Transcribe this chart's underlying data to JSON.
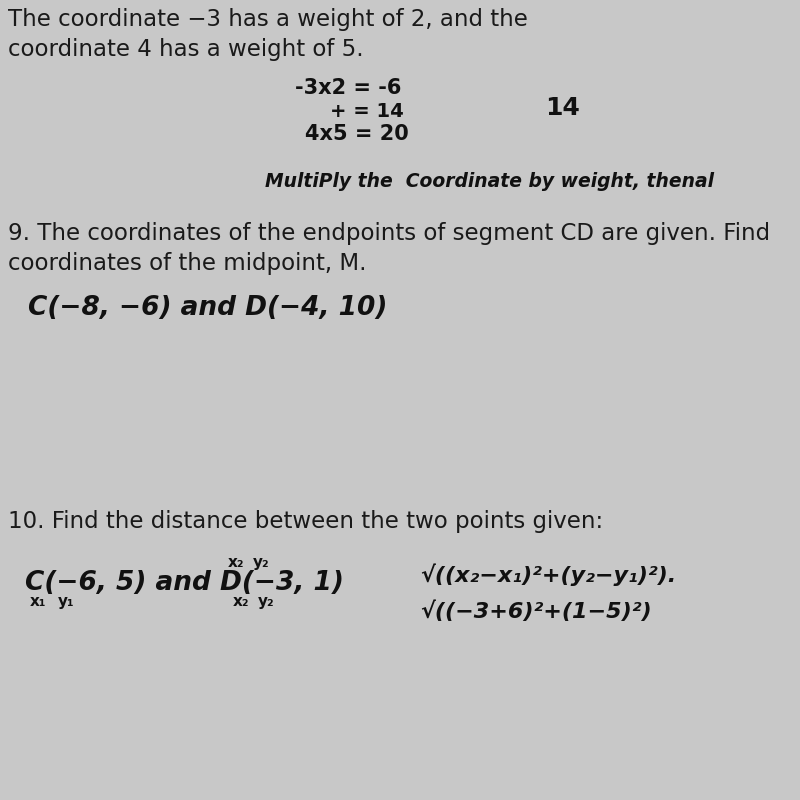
{
  "bg_color": "#c8c8c8",
  "paper_color": "#d8d8d8",
  "text_color": "#1a1a1a",
  "hw_color": "#111111",
  "top_line1": "The coordinate −3 has a weight of 2, and the",
  "top_line2": "coordinate 4 has a weight of 5.",
  "hw_calc1": "-3x2 = -6",
  "hw_calc2": "    + = 14",
  "hw_14": "14",
  "hw_calc3": "4x5 = 20",
  "hw_note": "MultiPly the  Coordinate by weight, thenal",
  "q9_line1": "9. The coordinates of the endpoints of segment CD are given. Find",
  "q9_line2": "coordinates of the midpoint, M.",
  "q9_pts": "C(−8, −6) and D(−4, 10)",
  "q10_header": "10. Find the distance between the two points given:",
  "q10_pts": "C(−6, 5) and D(−3, 1)",
  "q10_sub_x1": "x₁",
  "q10_sub_y1": "y₁",
  "q10_sub_x2": "x₂",
  "q10_sub_y2": "y₂",
  "q10_formula1": "√((x₂−x₁)²+(y₂−y₁)²).",
  "q10_formula2": "√((−3+6)²+(1−5)²)"
}
